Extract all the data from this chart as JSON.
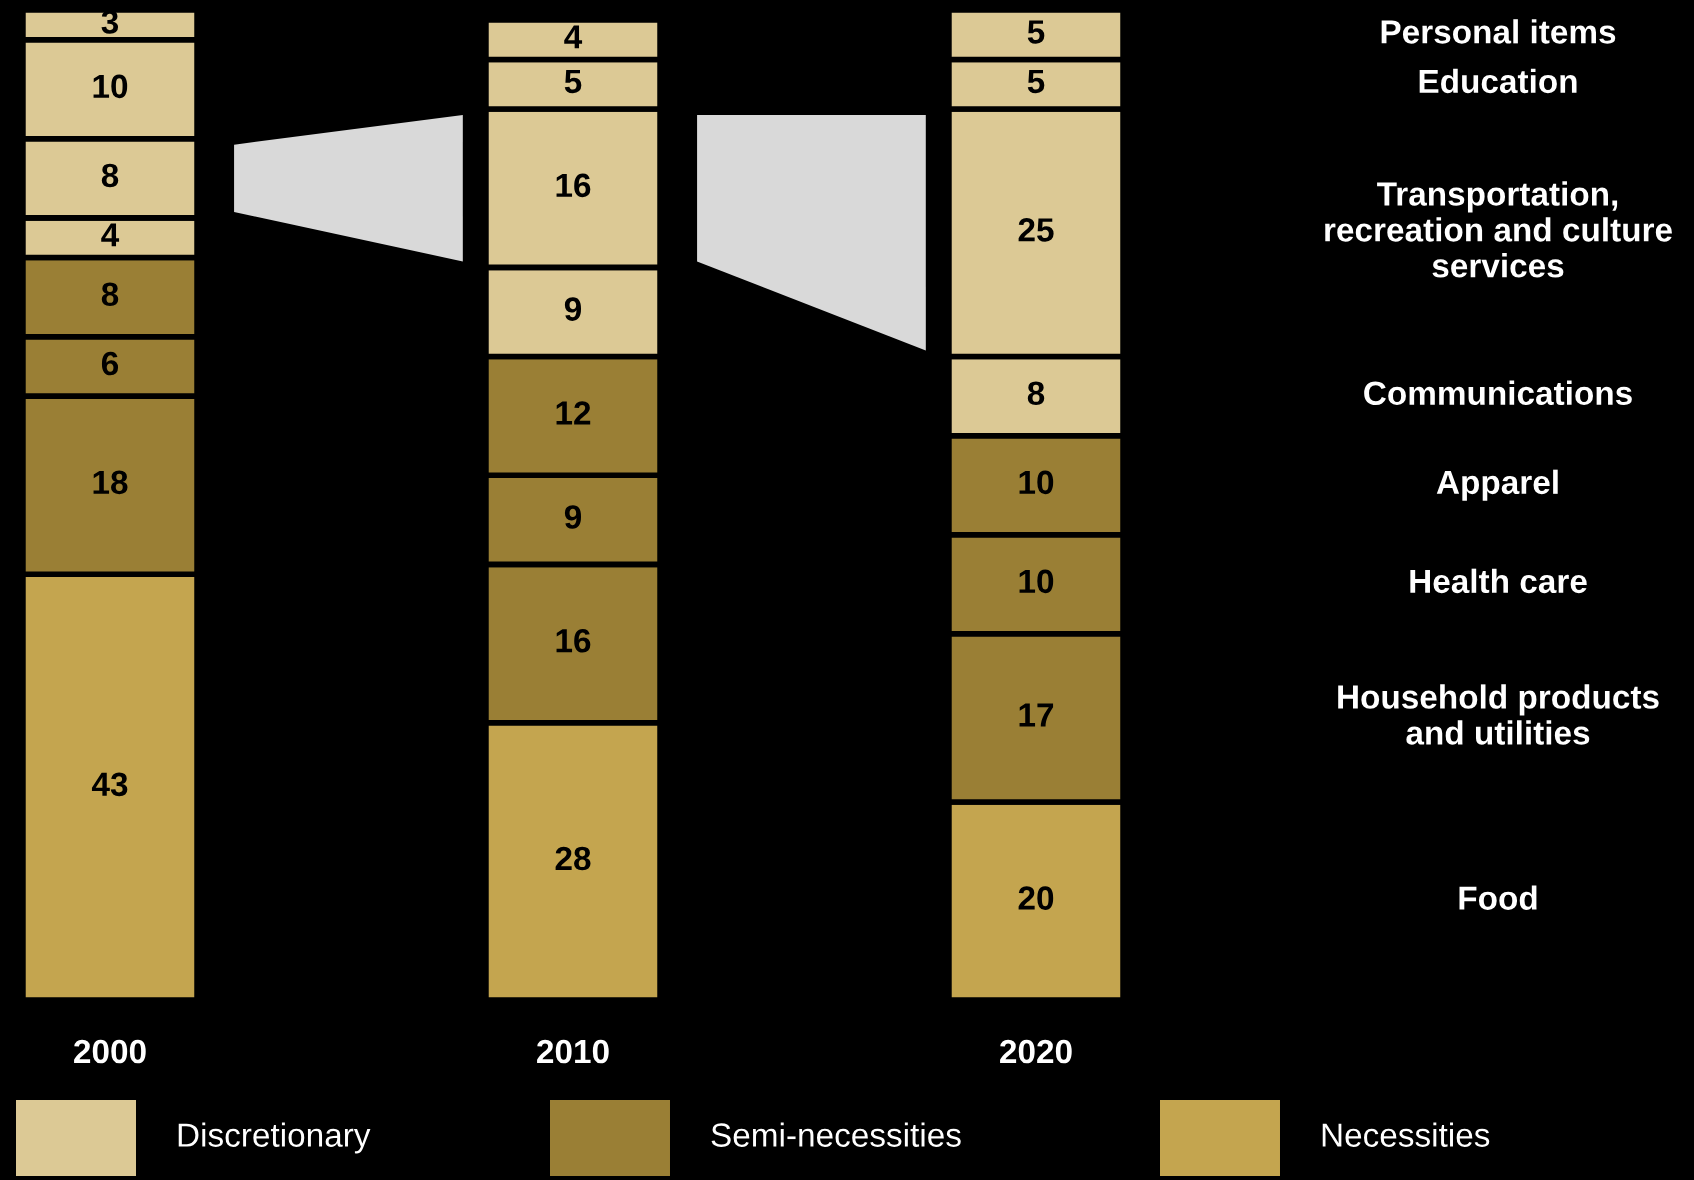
{
  "chart_data": {
    "type": "bar",
    "stacked": true,
    "data_labels": true,
    "grid": false,
    "legend": false,
    "categories": [
      "2000",
      "2010",
      "2020"
    ],
    "series": [
      {
        "name": "Food",
        "color": "#c4a54f",
        "values": [
          43,
          28,
          20
        ]
      },
      {
        "name": "Household products and utilities",
        "color": "#9a7f35",
        "values": [
          18,
          16,
          17
        ]
      },
      {
        "name": "Health care",
        "color": "#9a7f35",
        "values": [
          6,
          9,
          10
        ]
      },
      {
        "name": "Apparel",
        "color": "#9a7f35",
        "values": [
          8,
          12,
          10
        ]
      },
      {
        "name": "Communications",
        "color": "#dcc995",
        "values": [
          4,
          9,
          8
        ]
      },
      {
        "name": "Transportation, recreation and culture services",
        "color": "#dcc995",
        "values": [
          8,
          16,
          25
        ]
      },
      {
        "name": "Education",
        "color": "#dcc995",
        "values": [
          10,
          5,
          5
        ]
      },
      {
        "name": "Personal items",
        "color": "#dcc995",
        "values": [
          3,
          4,
          5
        ]
      }
    ],
    "annotations": [
      "Discretionary",
      "Semi-necessities",
      "Necessities"
    ]
  }
}
